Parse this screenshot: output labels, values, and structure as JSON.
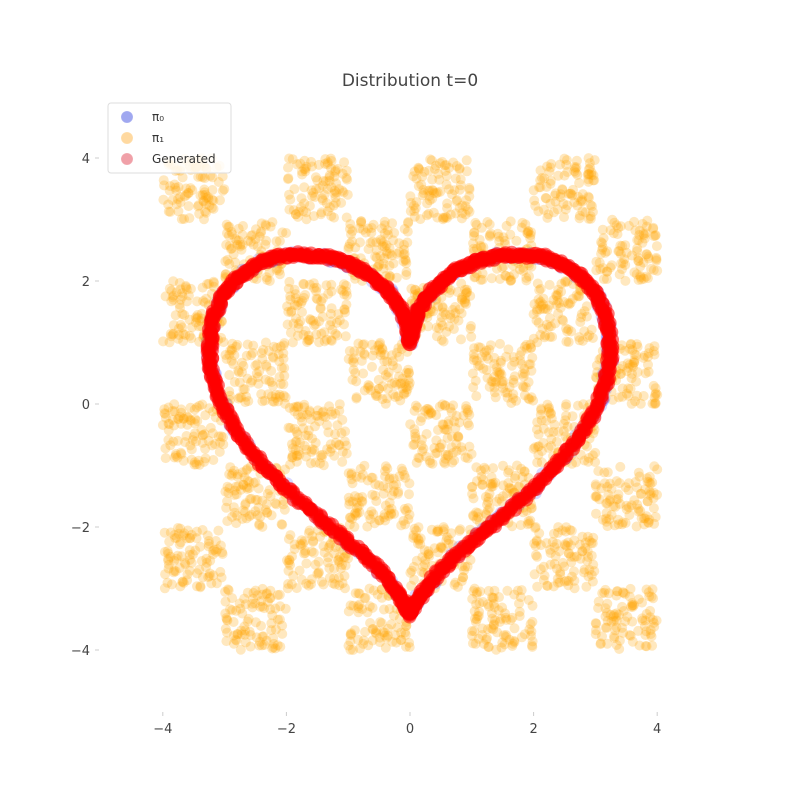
{
  "chart_data": {
    "type": "scatter",
    "title": "Distribution t=0",
    "xlabel": "",
    "ylabel": "",
    "xlim": [
      -5,
      5
    ],
    "ylim": [
      -5,
      5
    ],
    "grid": false,
    "legend_position": "top-left",
    "x_ticks": [
      -4,
      -2,
      0,
      2,
      4
    ],
    "y_ticks": [
      -4,
      -2,
      0,
      2,
      4
    ],
    "x_tick_labels": [
      "−4",
      "−2",
      "0",
      "2",
      "4"
    ],
    "y_tick_labels": [
      "−4",
      "−2",
      "0",
      "2",
      "4"
    ],
    "series": [
      {
        "name": "π₀",
        "color": "#0000ff",
        "alpha": 0.15,
        "shape": "heart",
        "description_values": {
          "x_range": [
            -3.3,
            3.3
          ],
          "y_range": [
            -3.4,
            2.4
          ]
        }
      },
      {
        "name": "π₁",
        "color": "#ffa500",
        "alpha": 0.25,
        "shape": "checkerboard",
        "cells": [
          [
            -4,
            3
          ],
          [
            -2,
            3
          ],
          [
            0,
            3
          ],
          [
            2,
            3
          ],
          [
            -3,
            2
          ],
          [
            -1,
            2
          ],
          [
            1,
            2
          ],
          [
            3,
            2
          ],
          [
            -4,
            1
          ],
          [
            -2,
            1
          ],
          [
            0,
            1
          ],
          [
            2,
            1
          ],
          [
            -3,
            0
          ],
          [
            -1,
            0
          ],
          [
            1,
            0
          ],
          [
            3,
            0
          ],
          [
            -4,
            -1
          ],
          [
            -2,
            -1
          ],
          [
            0,
            -1
          ],
          [
            2,
            -1
          ],
          [
            -3,
            -2
          ],
          [
            -1,
            -2
          ],
          [
            1,
            -2
          ],
          [
            3,
            -2
          ],
          [
            -4,
            -3
          ],
          [
            -2,
            -3
          ],
          [
            0,
            -3
          ],
          [
            2,
            -3
          ],
          [
            -3,
            -4
          ],
          [
            -1,
            -4
          ],
          [
            1,
            -4
          ],
          [
            3,
            -4
          ]
        ],
        "cell_size": 1
      },
      {
        "name": "Generated",
        "color": "#ff0000",
        "alpha": 0.2,
        "shape": "heart",
        "description_values": {
          "x_range": [
            -3.3,
            3.3
          ],
          "y_range": [
            -3.4,
            2.4
          ]
        }
      }
    ]
  },
  "heart_points": [
    [
      0.0,
      1.0
    ],
    [
      0.05,
      1.28
    ],
    [
      0.15,
      1.55
    ],
    [
      0.32,
      1.8
    ],
    [
      0.55,
      2.02
    ],
    [
      0.82,
      2.2
    ],
    [
      1.12,
      2.33
    ],
    [
      1.45,
      2.41
    ],
    [
      1.8,
      2.43
    ],
    [
      2.15,
      2.39
    ],
    [
      2.48,
      2.27
    ],
    [
      2.76,
      2.08
    ],
    [
      2.99,
      1.82
    ],
    [
      3.15,
      1.5
    ],
    [
      3.23,
      1.13
    ],
    [
      3.24,
      0.75
    ],
    [
      3.17,
      0.35
    ],
    [
      3.02,
      -0.05
    ],
    [
      2.8,
      -0.45
    ],
    [
      2.52,
      -0.83
    ],
    [
      2.2,
      -1.18
    ],
    [
      1.85,
      -1.52
    ],
    [
      1.47,
      -1.85
    ],
    [
      1.1,
      -2.15
    ],
    [
      0.75,
      -2.45
    ],
    [
      0.45,
      -2.75
    ],
    [
      0.22,
      -3.05
    ],
    [
      0.07,
      -3.28
    ],
    [
      0.0,
      -3.42
    ],
    [
      -0.07,
      -3.28
    ],
    [
      -0.22,
      -3.05
    ],
    [
      -0.45,
      -2.75
    ],
    [
      -0.75,
      -2.45
    ],
    [
      -1.1,
      -2.15
    ],
    [
      -1.47,
      -1.85
    ],
    [
      -1.85,
      -1.52
    ],
    [
      -2.2,
      -1.18
    ],
    [
      -2.52,
      -0.83
    ],
    [
      -2.8,
      -0.45
    ],
    [
      -3.02,
      -0.05
    ],
    [
      -3.17,
      0.35
    ],
    [
      -3.24,
      0.75
    ],
    [
      -3.23,
      1.13
    ],
    [
      -3.15,
      1.5
    ],
    [
      -2.99,
      1.82
    ],
    [
      -2.76,
      2.08
    ],
    [
      -2.48,
      2.27
    ],
    [
      -2.15,
      2.39
    ],
    [
      -1.8,
      2.43
    ],
    [
      -1.45,
      2.41
    ],
    [
      -1.12,
      2.33
    ],
    [
      -0.82,
      2.2
    ],
    [
      -0.55,
      2.02
    ],
    [
      -0.32,
      1.8
    ],
    [
      -0.15,
      1.55
    ],
    [
      -0.05,
      1.28
    ],
    [
      0.0,
      1.0
    ]
  ],
  "legend": {
    "items": [
      {
        "label": "π₀",
        "color": "#a0a8f0"
      },
      {
        "label": "π₁",
        "color": "#ffd9a0"
      },
      {
        "label": "Generated",
        "color": "#f0a0a8"
      }
    ]
  }
}
